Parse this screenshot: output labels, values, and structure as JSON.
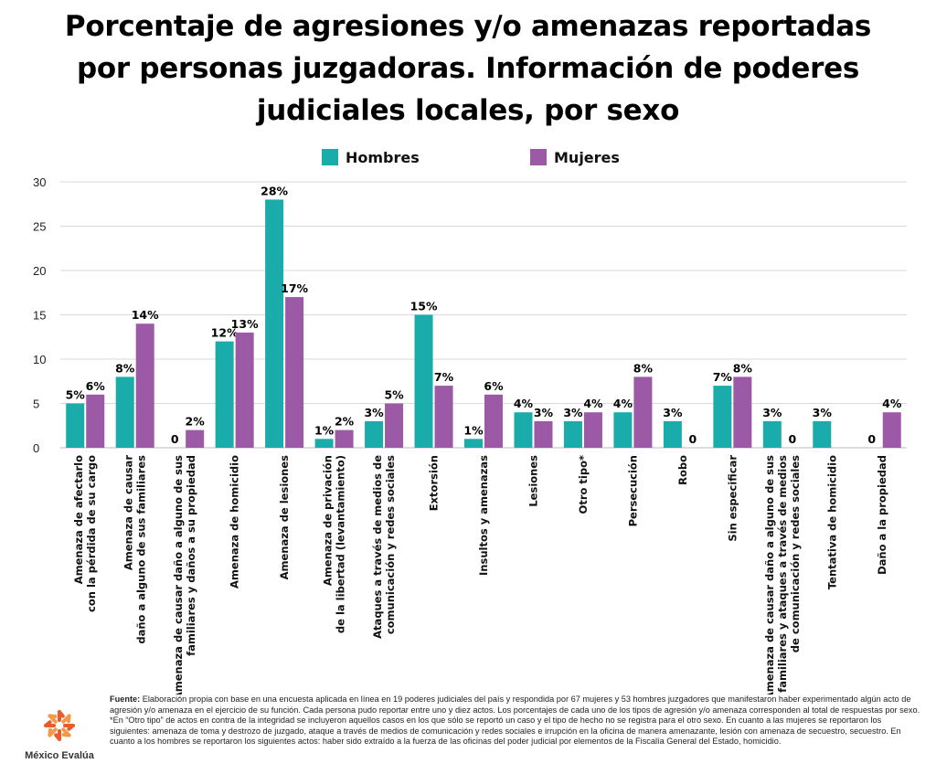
{
  "title": "Porcentaje de agresiones y/o amenazas reportadas por personas juzgadoras. Información de poderes judiciales locales, por sexo",
  "colors": {
    "hombres": "#1aacaa",
    "mujeres": "#9b59a6",
    "grid": "#d9d9d9",
    "text": "#111111",
    "logo_accent": "#e85b2a"
  },
  "chart_data": {
    "type": "bar",
    "title": "Porcentaje de agresiones y/o amenazas reportadas por personas juzgadoras. Información de poderes judiciales locales, por sexo",
    "xlabel": "",
    "ylabel": "",
    "ylim": [
      0,
      30
    ],
    "yticks": [
      "0",
      "5",
      "10",
      "15",
      "20",
      "25",
      "30"
    ],
    "ytick_values": [
      0,
      5,
      10,
      15,
      20,
      25,
      30
    ],
    "grid": true,
    "legend_position": "top-center",
    "categories": [
      [
        "Amenaza de afectarlo",
        "con la pérdida de su cargo"
      ],
      [
        "Amenaza de causar",
        "daño a alguno de sus familiares"
      ],
      [
        "Amenaza de causar daño a alguno de sus",
        "familiares y daños a su propiedad"
      ],
      [
        "Amenaza de homicidio"
      ],
      [
        "Amenaza de lesiones"
      ],
      [
        "Amenaza de privación",
        "de la libertad (levantamiento)"
      ],
      [
        "Ataques a través de medios de",
        "comunicación y redes sociales"
      ],
      [
        "Extorsión"
      ],
      [
        "Insultos y amenazas"
      ],
      [
        "Lesiones"
      ],
      [
        "Otro tipo*"
      ],
      [
        "Persecución"
      ],
      [
        "Robo"
      ],
      [
        "Sin especificar"
      ],
      [
        "Amenaza de causar daño a alguno de sus",
        "familiares y ataques a través de medios",
        "de comunicación y redes sociales"
      ],
      [
        "Tentativa de homicidio"
      ],
      [
        "Daño a la propiedad"
      ]
    ],
    "series": [
      {
        "name": "Hombres",
        "values": [
          5,
          8,
          0,
          12,
          28,
          1,
          3,
          15,
          1,
          4,
          3,
          4,
          3,
          7,
          3,
          3,
          0
        ],
        "labels": [
          "5%",
          "8%",
          "0",
          "12%",
          "28%",
          "1%",
          "3%",
          "15%",
          "1%",
          "4%",
          "3%",
          "4%",
          "3%",
          "7%",
          "3%",
          "3%",
          "0"
        ]
      },
      {
        "name": "Mujeres",
        "values": [
          6,
          14,
          2,
          13,
          17,
          2,
          5,
          7,
          6,
          3,
          4,
          8,
          0,
          8,
          0,
          null,
          4
        ],
        "labels": [
          "6%",
          "14%",
          "2%",
          "13%",
          "17%",
          "2%",
          "5%",
          "7%",
          "6%",
          "3%",
          "4%",
          "8%",
          "0",
          "8%",
          "0",
          null,
          "4%"
        ]
      }
    ]
  },
  "legend": {
    "hombres": "Hombres",
    "mujeres": "Mujeres"
  },
  "footnote": {
    "fuente_label": "Fuente:",
    "fuente_text": " Elaboración propia con base en una encuesta aplicada en línea en 19 poderes judiciales del país y respondida por 67 mujeres y 53 hombres juzgadores que manifestaron haber experimentado algún acto de agresión y/o amenaza en el ejercicio de su función. Cada persona pudo reportar entre uno y diez actos. Los porcentajes de cada uno de los tipos de agresión y/o amenaza corresponden al total de respuestas por sexo.",
    "nota": "*En “Otro tipo” de actos en contra de la integridad se incluyeron aquellos casos en los que sólo se reportó un caso y el tipo de hecho no se registra para el otro sexo. En cuanto a las mujeres se reportaron los siguientes: amenaza de toma y destrozo de juzgado, ataque a través de medios de comunicación y redes sociales e irrupción en la oficina de manera amenazante, lesión con amenaza de secuestro, secuestro. En cuanto a los hombres se reportaron los siguientes actos: haber sido extraído a la fuerza de las oficinas del poder judicial por elementos de la Fiscalía General del Estado, homicidio."
  },
  "logo": {
    "name": "México Evalúa"
  }
}
